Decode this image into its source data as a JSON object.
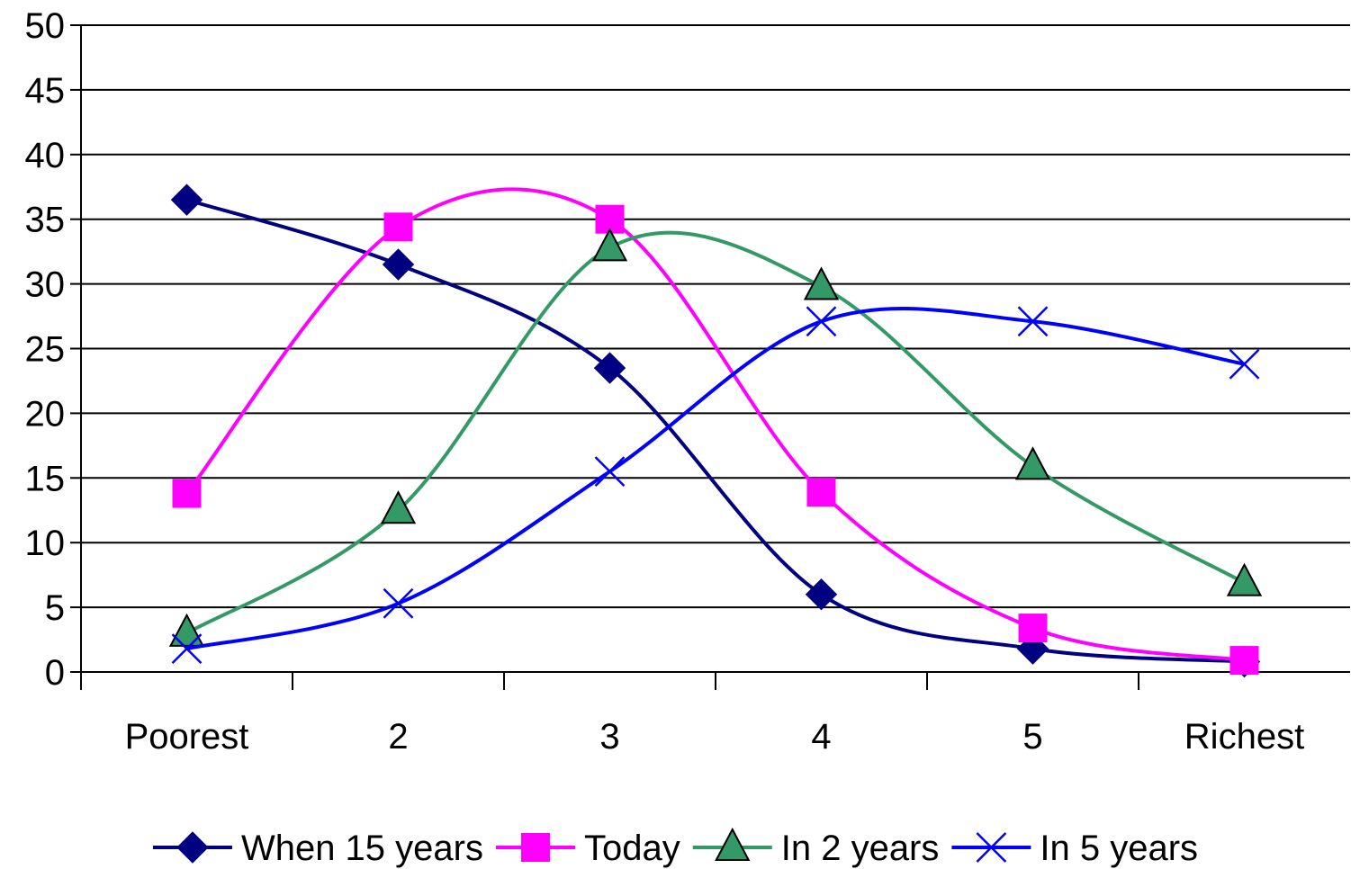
{
  "chart_data": {
    "type": "line",
    "smooth": true,
    "categories": [
      "Poorest",
      "2",
      "3",
      "4",
      "5",
      "Richest"
    ],
    "ylim": [
      0,
      50
    ],
    "yticks": [
      0,
      5,
      10,
      15,
      20,
      25,
      30,
      35,
      40,
      45,
      50
    ],
    "grid": true,
    "legend": "bottom",
    "series": [
      {
        "name": "When 15 years",
        "values": [
          36.5,
          31.5,
          23.5,
          6.0,
          1.8,
          0.8
        ],
        "color": "#000080",
        "marker": "diamond"
      },
      {
        "name": "Today",
        "values": [
          13.8,
          34.4,
          35.0,
          13.9,
          3.4,
          0.9
        ],
        "color": "#FF00FF",
        "marker": "square"
      },
      {
        "name": "In 2 years",
        "values": [
          3.0,
          12.5,
          32.8,
          29.8,
          15.9,
          6.9
        ],
        "color": "#339966",
        "marker": "triangle"
      },
      {
        "name": "In 5 years",
        "values": [
          1.8,
          5.3,
          15.5,
          27.1,
          27.1,
          23.8
        ],
        "color": "#0000FF",
        "marker": "x"
      }
    ]
  }
}
